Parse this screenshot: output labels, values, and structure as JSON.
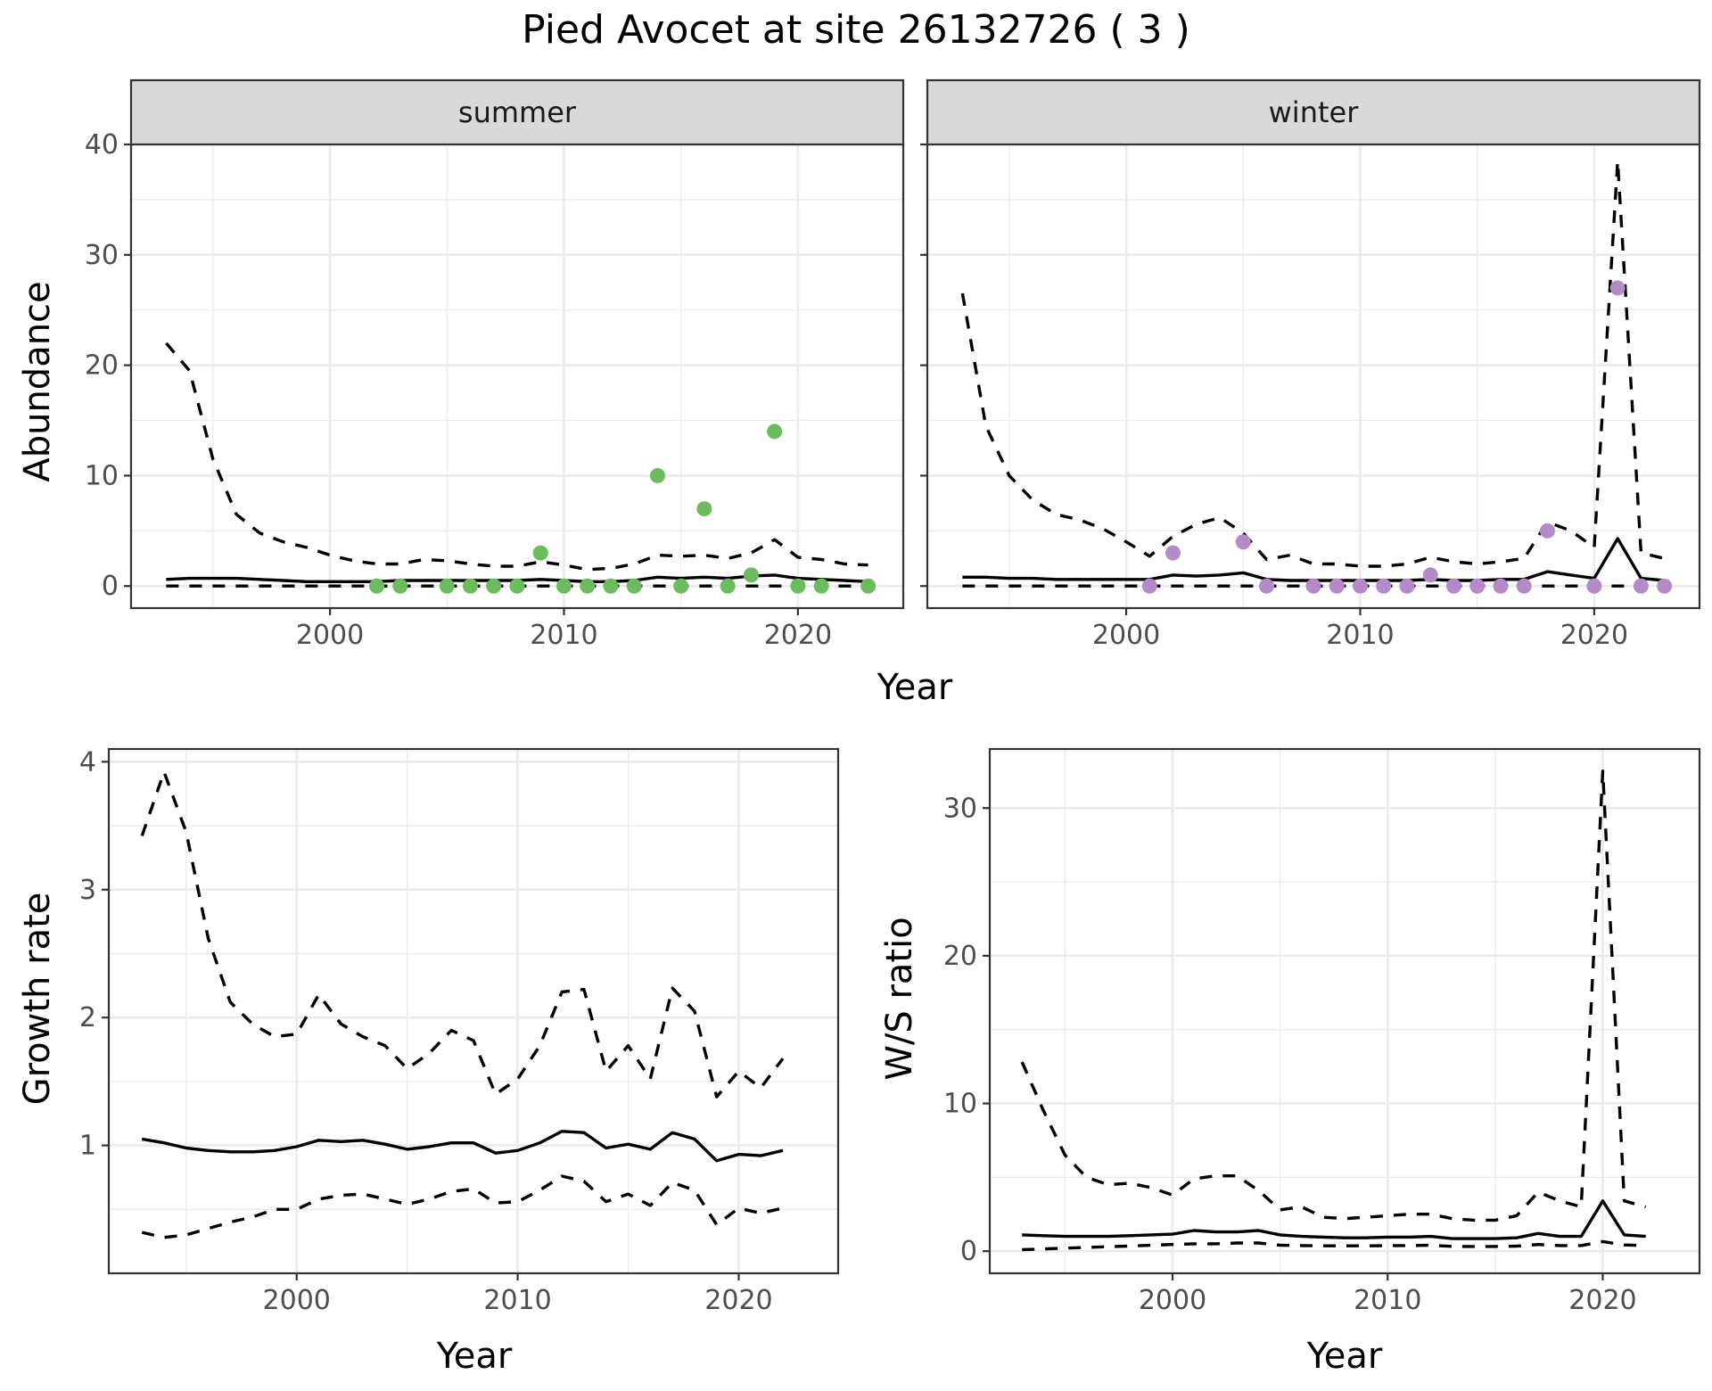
{
  "figure": {
    "title": "Pied Avocet at site 26132726 ( 3 )"
  },
  "colors": {
    "summer_points": "#6dbb5f",
    "winter_points": "#b58ac8",
    "lines": "#000000"
  },
  "chart_data": [
    {
      "type": "line",
      "panel": "summer",
      "facet_label": "summer",
      "ylabel": "Abundance",
      "xlabel": "Year",
      "xlim": [
        1991.5,
        2024.5
      ],
      "ylim": [
        -2,
        40
      ],
      "xticks": [
        2000,
        2010,
        2020
      ],
      "yticks": [
        0,
        10,
        20,
        30,
        40
      ],
      "grid": true,
      "series": [
        {
          "role": "mean",
          "style": "solid",
          "x": [
            1993,
            1994,
            1995,
            1996,
            1997,
            1998,
            1999,
            2000,
            2001,
            2002,
            2003,
            2004,
            2005,
            2006,
            2007,
            2008,
            2009,
            2010,
            2011,
            2012,
            2013,
            2014,
            2015,
            2016,
            2017,
            2018,
            2019,
            2020,
            2021,
            2022,
            2023
          ],
          "y": [
            0.6,
            0.7,
            0.7,
            0.7,
            0.6,
            0.5,
            0.4,
            0.4,
            0.4,
            0.4,
            0.5,
            0.5,
            0.5,
            0.5,
            0.5,
            0.5,
            0.6,
            0.5,
            0.4,
            0.4,
            0.5,
            0.8,
            0.7,
            0.8,
            0.7,
            0.9,
            1.0,
            0.7,
            0.6,
            0.5,
            0.4
          ]
        },
        {
          "role": "upper",
          "style": "dashed",
          "x": [
            1993,
            1994,
            1995,
            1996,
            1997,
            1998,
            1999,
            2000,
            2001,
            2002,
            2003,
            2004,
            2005,
            2006,
            2007,
            2008,
            2009,
            2010,
            2011,
            2012,
            2013,
            2014,
            2015,
            2016,
            2017,
            2018,
            2019,
            2020,
            2021,
            2022,
            2023
          ],
          "y": [
            22,
            19.5,
            11.5,
            6.5,
            4.8,
            4.0,
            3.5,
            2.8,
            2.3,
            2.0,
            2.0,
            2.4,
            2.3,
            2.0,
            1.8,
            1.8,
            2.2,
            1.9,
            1.5,
            1.6,
            2.0,
            2.8,
            2.7,
            2.8,
            2.5,
            3.0,
            4.2,
            2.6,
            2.4,
            2.0,
            1.9
          ]
        },
        {
          "role": "lower",
          "style": "dashed",
          "x": [
            1993,
            2023
          ],
          "y": [
            0,
            0
          ]
        }
      ],
      "points": {
        "x": [
          2002,
          2003,
          2005,
          2006,
          2007,
          2008,
          2009,
          2010,
          2011,
          2012,
          2013,
          2014,
          2015,
          2016,
          2017,
          2018,
          2019,
          2020,
          2021,
          2023
        ],
        "y": [
          0,
          0,
          0,
          0,
          0,
          0,
          3,
          0,
          0,
          0,
          0,
          10,
          0,
          7,
          0,
          1,
          14,
          0,
          0,
          0
        ]
      }
    },
    {
      "type": "line",
      "panel": "winter",
      "facet_label": "winter",
      "ylabel": "Abundance",
      "xlabel": "Year",
      "xlim": [
        1991.5,
        2024.5
      ],
      "ylim": [
        -2,
        40
      ],
      "xticks": [
        2000,
        2010,
        2020
      ],
      "yticks": [
        0,
        10,
        20,
        30,
        40
      ],
      "grid": true,
      "series": [
        {
          "role": "mean",
          "style": "solid",
          "x": [
            1993,
            1994,
            1995,
            1996,
            1997,
            1998,
            1999,
            2000,
            2001,
            2002,
            2003,
            2004,
            2005,
            2006,
            2007,
            2008,
            2009,
            2010,
            2011,
            2012,
            2013,
            2014,
            2015,
            2016,
            2017,
            2018,
            2019,
            2020,
            2021,
            2022,
            2023
          ],
          "y": [
            0.8,
            0.8,
            0.7,
            0.7,
            0.6,
            0.6,
            0.6,
            0.6,
            0.6,
            1.0,
            0.9,
            1.0,
            1.2,
            0.6,
            0.5,
            0.5,
            0.5,
            0.5,
            0.5,
            0.5,
            0.6,
            0.5,
            0.5,
            0.6,
            0.6,
            1.3,
            1.0,
            0.7,
            4.3,
            0.7,
            0.5
          ]
        },
        {
          "role": "upper",
          "style": "dashed",
          "x": [
            1993,
            1994,
            1995,
            1996,
            1997,
            1998,
            1999,
            2000,
            2001,
            2002,
            2003,
            2004,
            2005,
            2006,
            2007,
            2008,
            2009,
            2010,
            2011,
            2012,
            2013,
            2014,
            2015,
            2016,
            2017,
            2018,
            2019,
            2020,
            2021,
            2022,
            2023
          ],
          "y": [
            26.5,
            14.5,
            10.0,
            7.8,
            6.5,
            6.0,
            5.2,
            4.0,
            2.7,
            4.5,
            5.6,
            6.2,
            4.8,
            2.4,
            2.8,
            2.0,
            2.0,
            1.8,
            1.8,
            2.0,
            2.6,
            2.2,
            2.0,
            2.2,
            2.5,
            5.8,
            5.0,
            3.5,
            38.5,
            3.0,
            2.5
          ]
        },
        {
          "role": "lower",
          "style": "dashed",
          "x": [
            1993,
            2023
          ],
          "y": [
            0,
            0
          ]
        }
      ],
      "points": {
        "x": [
          2001,
          2002,
          2005,
          2006,
          2008,
          2009,
          2010,
          2011,
          2012,
          2013,
          2014,
          2015,
          2016,
          2017,
          2018,
          2020,
          2021,
          2022,
          2023
        ],
        "y": [
          0,
          3,
          4,
          0,
          0,
          0,
          0,
          0,
          0,
          1,
          0,
          0,
          0,
          0,
          5,
          0,
          27,
          0,
          0
        ]
      }
    },
    {
      "type": "line",
      "panel": "growth",
      "ylabel": "Growth rate",
      "xlabel": "Year",
      "xlim": [
        1991.5,
        2024.5
      ],
      "ylim": [
        0.0,
        4.1
      ],
      "xticks": [
        2000,
        2010,
        2020
      ],
      "yticks": [
        1,
        2,
        3,
        4
      ],
      "grid": true,
      "series": [
        {
          "role": "mean",
          "style": "solid",
          "x": [
            1993,
            1994,
            1995,
            1996,
            1997,
            1998,
            1999,
            2000,
            2001,
            2002,
            2003,
            2004,
            2005,
            2006,
            2007,
            2008,
            2009,
            2010,
            2011,
            2012,
            2013,
            2014,
            2015,
            2016,
            2017,
            2018,
            2019,
            2020,
            2021,
            2022
          ],
          "y": [
            1.05,
            1.02,
            0.98,
            0.96,
            0.95,
            0.95,
            0.96,
            0.99,
            1.04,
            1.03,
            1.04,
            1.01,
            0.97,
            0.99,
            1.02,
            1.02,
            0.94,
            0.96,
            1.02,
            1.11,
            1.1,
            0.98,
            1.01,
            0.97,
            1.1,
            1.05,
            0.88,
            0.93,
            0.92,
            0.96
          ]
        },
        {
          "role": "upper",
          "style": "dashed",
          "x": [
            1993,
            1994,
            1995,
            1996,
            1997,
            1998,
            1999,
            2000,
            2001,
            2002,
            2003,
            2004,
            2005,
            2006,
            2007,
            2008,
            2009,
            2010,
            2011,
            2012,
            2013,
            2014,
            2015,
            2016,
            2017,
            2018,
            2019,
            2020,
            2021,
            2022
          ],
          "y": [
            3.42,
            3.92,
            3.45,
            2.62,
            2.12,
            1.95,
            1.85,
            1.87,
            2.18,
            1.95,
            1.85,
            1.78,
            1.6,
            1.72,
            1.9,
            1.82,
            1.4,
            1.52,
            1.78,
            2.2,
            2.22,
            1.58,
            1.78,
            1.52,
            2.23,
            2.05,
            1.38,
            1.58,
            1.45,
            1.68
          ]
        },
        {
          "role": "lower",
          "style": "dashed",
          "x": [
            1993,
            1994,
            1995,
            1996,
            1997,
            1998,
            1999,
            2000,
            2001,
            2002,
            2003,
            2004,
            2005,
            2006,
            2007,
            2008,
            2009,
            2010,
            2011,
            2012,
            2013,
            2014,
            2015,
            2016,
            2017,
            2018,
            2019,
            2020,
            2021,
            2022
          ],
          "y": [
            0.32,
            0.28,
            0.3,
            0.35,
            0.4,
            0.44,
            0.5,
            0.5,
            0.58,
            0.61,
            0.62,
            0.58,
            0.54,
            0.58,
            0.64,
            0.66,
            0.55,
            0.56,
            0.65,
            0.76,
            0.72,
            0.56,
            0.62,
            0.53,
            0.71,
            0.65,
            0.38,
            0.51,
            0.47,
            0.51
          ]
        }
      ]
    },
    {
      "type": "line",
      "panel": "ratio",
      "ylabel": "W/S ratio",
      "xlabel": "Year",
      "xlim": [
        1991.5,
        2024.5
      ],
      "ylim": [
        -1.5,
        34
      ],
      "xticks": [
        2000,
        2010,
        2020
      ],
      "yticks": [
        0,
        10,
        20,
        30
      ],
      "grid": true,
      "series": [
        {
          "role": "mean",
          "style": "solid",
          "x": [
            1993,
            1994,
            1995,
            1996,
            1997,
            1998,
            1999,
            2000,
            2001,
            2002,
            2003,
            2004,
            2005,
            2006,
            2007,
            2008,
            2009,
            2010,
            2011,
            2012,
            2013,
            2014,
            2015,
            2016,
            2017,
            2018,
            2019,
            2020,
            2021,
            2022
          ],
          "y": [
            1.1,
            1.05,
            1.0,
            1.0,
            1.0,
            1.05,
            1.1,
            1.15,
            1.4,
            1.3,
            1.3,
            1.4,
            1.1,
            1.0,
            0.95,
            0.9,
            0.9,
            0.95,
            0.95,
            1.0,
            0.85,
            0.85,
            0.85,
            0.9,
            1.2,
            1.0,
            1.0,
            3.4,
            1.1,
            1.0
          ]
        },
        {
          "role": "upper",
          "style": "dashed",
          "x": [
            1993,
            1994,
            1995,
            1996,
            1997,
            1998,
            1999,
            2000,
            2001,
            2002,
            2003,
            2004,
            2005,
            2006,
            2007,
            2008,
            2009,
            2010,
            2011,
            2012,
            2013,
            2014,
            2015,
            2016,
            2017,
            2018,
            2019,
            2020,
            2021,
            2022
          ],
          "y": [
            12.8,
            9.5,
            6.5,
            5.0,
            4.5,
            4.6,
            4.3,
            3.8,
            4.9,
            5.1,
            5.1,
            4.1,
            2.8,
            3.0,
            2.3,
            2.2,
            2.3,
            2.4,
            2.5,
            2.5,
            2.2,
            2.1,
            2.1,
            2.4,
            4.0,
            3.4,
            3.0,
            32.5,
            3.4,
            3.0
          ]
        },
        {
          "role": "lower",
          "style": "dashed",
          "x": [
            1993,
            1994,
            1995,
            1996,
            1997,
            1998,
            1999,
            2000,
            2001,
            2002,
            2003,
            2004,
            2005,
            2006,
            2007,
            2008,
            2009,
            2010,
            2011,
            2012,
            2013,
            2014,
            2015,
            2016,
            2017,
            2018,
            2019,
            2020,
            2021,
            2022
          ],
          "y": [
            0.1,
            0.15,
            0.2,
            0.25,
            0.3,
            0.35,
            0.4,
            0.45,
            0.5,
            0.5,
            0.55,
            0.55,
            0.4,
            0.38,
            0.36,
            0.36,
            0.36,
            0.37,
            0.38,
            0.4,
            0.32,
            0.32,
            0.32,
            0.34,
            0.45,
            0.38,
            0.38,
            0.65,
            0.42,
            0.38
          ]
        }
      ]
    }
  ]
}
